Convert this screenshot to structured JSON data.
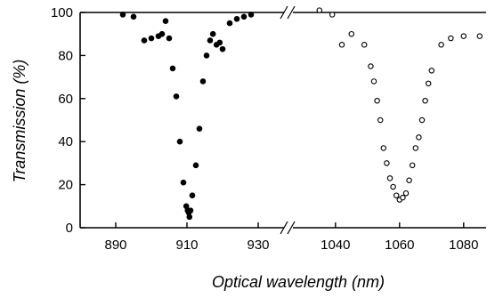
{
  "chart_data": {
    "type": "scatter",
    "xlabel": "Optical wavelength (nm)",
    "ylabel": "Transmission (%)",
    "ylim": [
      0,
      100
    ],
    "y_ticks": [
      0,
      20,
      40,
      60,
      80,
      100
    ],
    "x_axis_break": true,
    "grid": false,
    "segments": [
      {
        "xlim": [
          880,
          937
        ],
        "x_ticks": [
          890,
          910,
          930
        ]
      },
      {
        "xlim": [
          1027,
          1087
        ],
        "x_ticks": [
          1040,
          1060,
          1080
        ]
      }
    ],
    "series": [
      {
        "marker": "filled-circle",
        "color": "#000000",
        "points": [
          [
            892,
            99
          ],
          [
            895,
            98
          ],
          [
            898,
            87
          ],
          [
            900,
            88
          ],
          [
            902,
            89
          ],
          [
            903,
            90
          ],
          [
            904,
            96
          ],
          [
            905,
            88
          ],
          [
            906,
            74
          ],
          [
            907,
            61
          ],
          [
            908,
            40
          ],
          [
            909,
            21
          ],
          [
            909.8,
            10
          ],
          [
            910.2,
            8
          ],
          [
            910.5,
            7
          ],
          [
            910.7,
            5
          ],
          [
            911,
            8
          ],
          [
            911.5,
            15
          ],
          [
            912.5,
            29
          ],
          [
            913.5,
            46
          ],
          [
            914.5,
            68
          ],
          [
            915.5,
            80
          ],
          [
            916.5,
            87
          ],
          [
            917.3,
            90
          ],
          [
            918.3,
            85
          ],
          [
            919.2,
            86
          ],
          [
            920,
            83
          ],
          [
            922,
            95
          ],
          [
            924,
            97
          ],
          [
            926,
            98
          ],
          [
            928,
            99
          ]
        ]
      },
      {
        "marker": "open-circle",
        "color": "#000000",
        "points": [
          [
            1035,
            101
          ],
          [
            1039,
            99
          ],
          [
            1042,
            85
          ],
          [
            1045,
            90
          ],
          [
            1049,
            85
          ],
          [
            1051,
            75
          ],
          [
            1052,
            68
          ],
          [
            1053,
            59
          ],
          [
            1054,
            50
          ],
          [
            1055,
            37
          ],
          [
            1056,
            30
          ],
          [
            1057,
            23
          ],
          [
            1058,
            19
          ],
          [
            1059,
            15
          ],
          [
            1060,
            13
          ],
          [
            1061,
            14
          ],
          [
            1062,
            16
          ],
          [
            1063,
            22
          ],
          [
            1064,
            29
          ],
          [
            1065,
            37
          ],
          [
            1066,
            42
          ],
          [
            1067,
            50
          ],
          [
            1068,
            59
          ],
          [
            1069,
            67
          ],
          [
            1070,
            73
          ],
          [
            1073,
            85
          ],
          [
            1076,
            88
          ],
          [
            1080,
            89
          ],
          [
            1085,
            89
          ]
        ]
      }
    ]
  }
}
